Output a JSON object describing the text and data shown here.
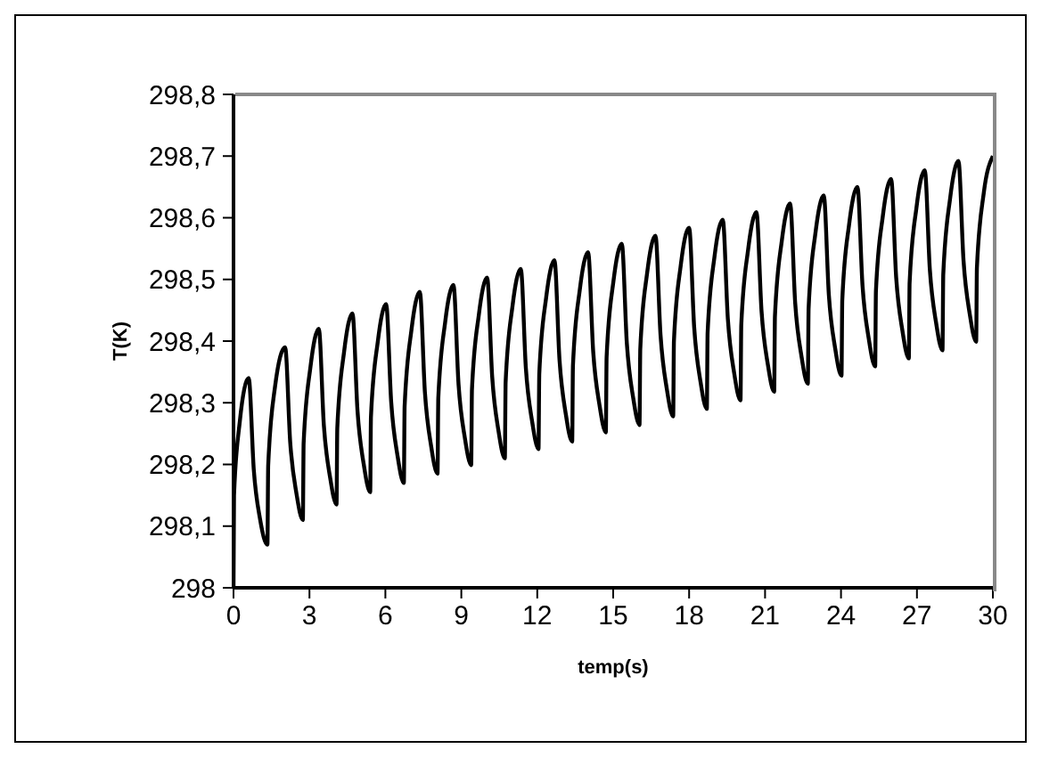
{
  "chart_data": {
    "type": "line",
    "xlabel": "temp(s)",
    "ylabel": "T(K)",
    "xlim": [
      0,
      30
    ],
    "xticks": [
      0,
      3,
      6,
      9,
      12,
      15,
      18,
      21,
      24,
      27,
      30
    ],
    "ylim": [
      298,
      298.8
    ],
    "yticks": [
      298,
      {
        "value": 298.1,
        "label": "298,1"
      },
      {
        "value": 298.2,
        "label": "298,2"
      },
      {
        "value": 298.3,
        "label": "298,3"
      },
      {
        "value": 298.4,
        "label": "298,4"
      },
      {
        "value": 298.5,
        "label": "298,5"
      },
      {
        "value": 298.6,
        "label": "298,6"
      },
      {
        "value": 298.7,
        "label": "298,7"
      },
      {
        "value": 298.8,
        "label": "298,8"
      }
    ],
    "grid": false,
    "legend": false,
    "marker": "none",
    "line_style": "solid",
    "series": [
      {
        "color": "#000000",
        "x": [
          0,
          0.02,
          0.25,
          0.6,
          0.8,
          1.05,
          1.34,
          1.37,
          1.64,
          2.04,
          2.24,
          2.49,
          2.74,
          2.77,
          3.04,
          3.37,
          3.57,
          3.82,
          4.07,
          4.1,
          4.37,
          4.7,
          4.9,
          5.15,
          5.4,
          5.43,
          5.7,
          6.03,
          6.23,
          6.48,
          6.73,
          6.76,
          7.03,
          7.36,
          7.56,
          7.81,
          8.06,
          8.09,
          8.36,
          8.69,
          8.89,
          9.14,
          9.39,
          9.42,
          9.69,
          10.02,
          10.22,
          10.47,
          10.72,
          10.75,
          11.02,
          11.35,
          11.55,
          11.8,
          12.05,
          12.08,
          12.35,
          12.68,
          12.88,
          13.13,
          13.38,
          13.41,
          13.68,
          14.01,
          14.21,
          14.46,
          14.71,
          14.74,
          15.01,
          15.34,
          15.54,
          15.79,
          16.04,
          16.07,
          16.34,
          16.67,
          16.87,
          17.12,
          17.37,
          17.4,
          17.67,
          18,
          18.2,
          18.45,
          18.7,
          18.73,
          19,
          19.33,
          19.53,
          19.78,
          20.03,
          20.06,
          20.33,
          20.66,
          20.86,
          21.11,
          21.36,
          21.39,
          21.66,
          21.99,
          22.19,
          22.44,
          22.69,
          22.72,
          22.99,
          23.32,
          23.52,
          23.77,
          24.02,
          24.05,
          24.32,
          24.65,
          24.85,
          25.1,
          25.35,
          25.38,
          25.65,
          25.98,
          26.18,
          26.43,
          26.68,
          26.71,
          26.98,
          27.31,
          27.51,
          27.76,
          28.01,
          28.04,
          28.31,
          28.64,
          28.84,
          29.09,
          29.34,
          29.37,
          29.64,
          30
        ],
        "values": [
          298,
          298.15,
          298.27,
          298.34,
          298.192,
          298.111,
          298.07,
          298.198,
          298.326,
          298.39,
          298.236,
          298.152,
          298.11,
          298.234,
          298.358,
          298.42,
          298.263,
          298.178,
          298.135,
          298.259,
          298.383,
          298.445,
          298.286,
          298.199,
          298.155,
          298.277,
          298.399,
          298.46,
          298.301,
          298.214,
          298.17,
          298.294,
          298.418,
          298.48,
          298.318,
          298.229,
          298.185,
          298.307,
          298.43,
          298.491,
          298.33,
          298.243,
          298.199,
          298.321,
          298.442,
          298.503,
          298.342,
          298.254,
          298.21,
          298.333,
          298.456,
          298.517,
          298.356,
          298.269,
          298.225,
          298.347,
          298.47,
          298.531,
          298.369,
          298.281,
          298.237,
          298.36,
          298.483,
          298.544,
          298.383,
          298.296,
          298.252,
          298.374,
          298.497,
          298.558,
          298.396,
          298.308,
          298.264,
          298.387,
          298.51,
          298.571,
          298.41,
          298.322,
          298.278,
          298.4,
          298.523,
          298.584,
          298.422,
          298.334,
          298.29,
          298.413,
          298.536,
          298.597,
          298.436,
          298.348,
          298.304,
          298.426,
          298.548,
          298.609,
          298.449,
          298.362,
          298.318,
          298.44,
          298.562,
          298.623,
          298.462,
          298.375,
          298.331,
          298.453,
          298.575,
          298.636,
          298.475,
          298.388,
          298.344,
          298.466,
          298.589,
          298.65,
          298.49,
          298.403,
          298.359,
          298.481,
          298.602,
          298.663,
          298.503,
          298.416,
          298.372,
          298.494,
          298.616,
          298.677,
          298.516,
          298.429,
          298.385,
          298.508,
          298.631,
          298.692,
          298.531,
          298.443,
          298.399,
          298.519,
          298.64,
          298.7
        ]
      }
    ]
  }
}
